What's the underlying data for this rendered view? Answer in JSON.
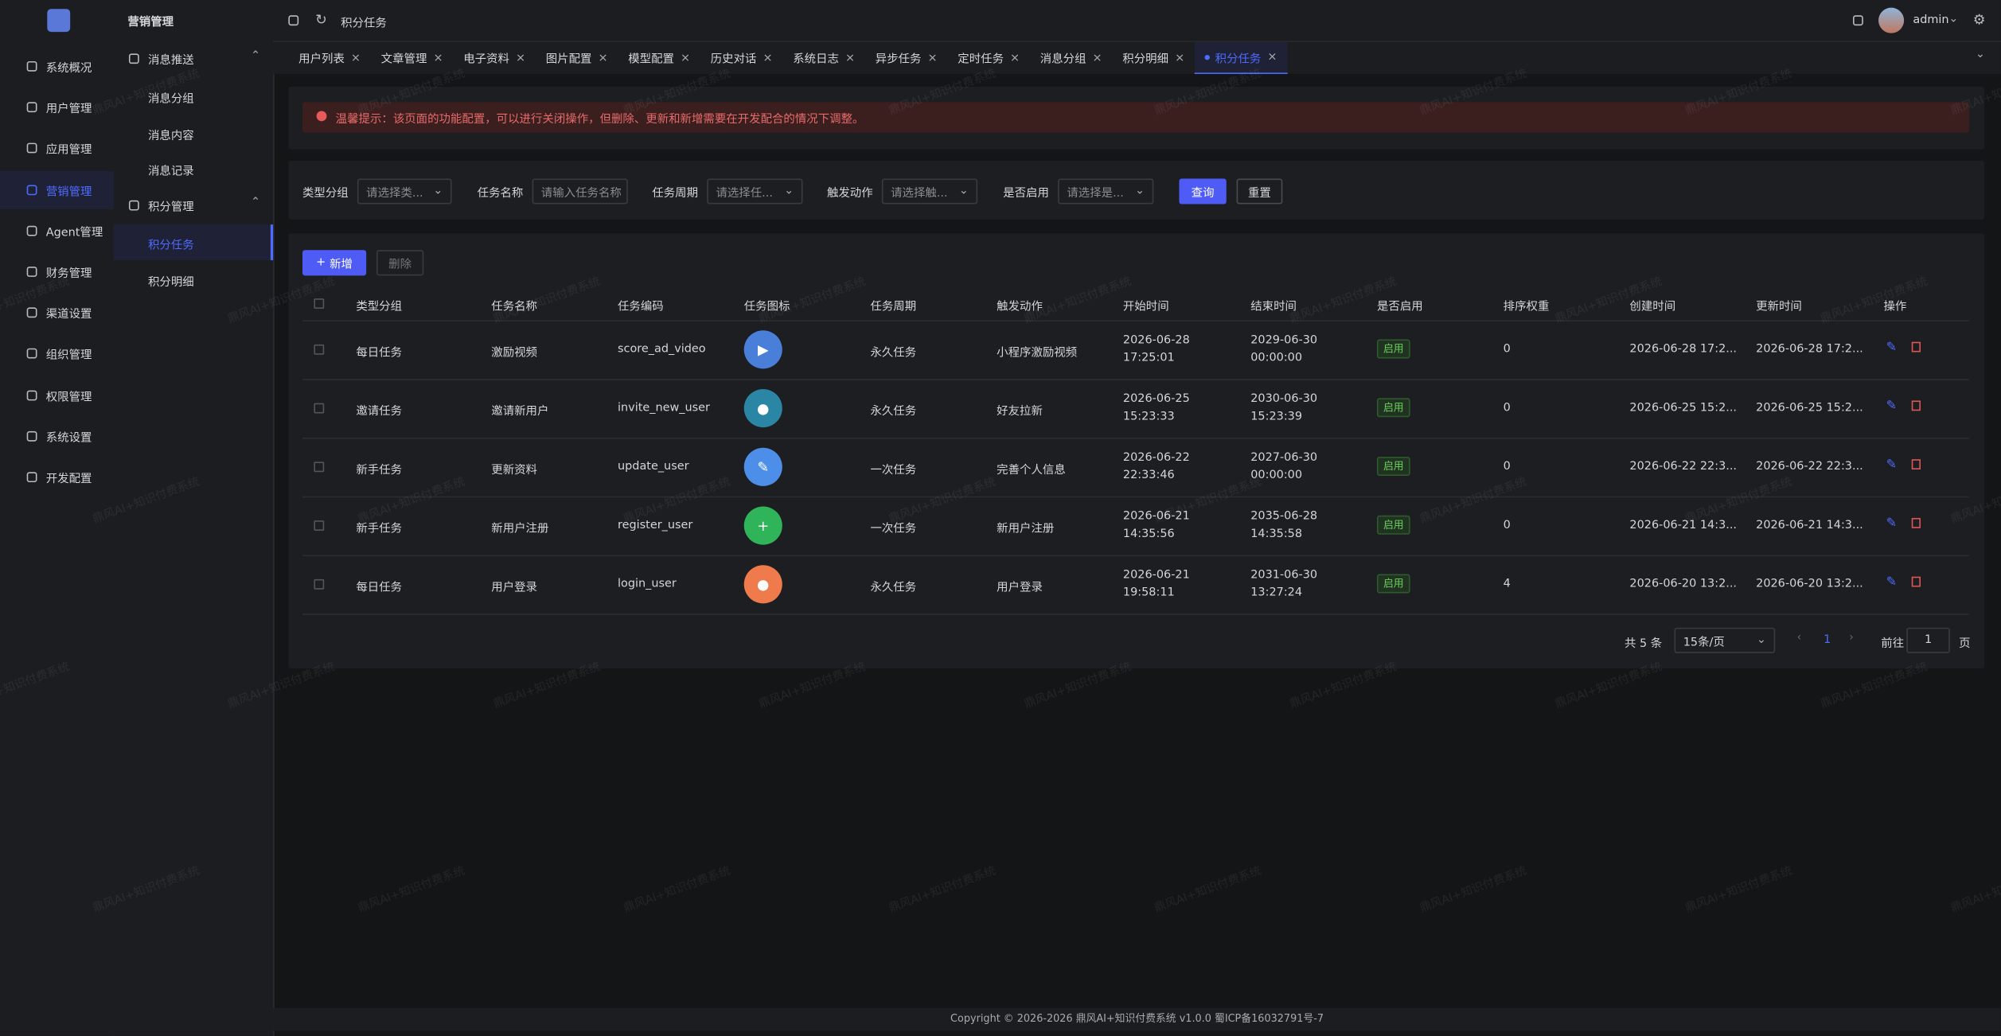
{
  "sidebar": {
    "menu": [
      "系统概况",
      "用户管理",
      "应用管理",
      "营销管理",
      "Agent管理",
      "财务管理",
      "渠道设置",
      "组织管理",
      "权限管理",
      "系统设置",
      "开发配置"
    ],
    "active": 3
  },
  "submenu": {
    "title": "营销管理",
    "groups": [
      {
        "label": "消息推送",
        "items": [
          "消息分组",
          "消息内容",
          "消息记录"
        ]
      },
      {
        "label": "积分管理",
        "items": [
          "积分任务",
          "积分明细"
        ]
      }
    ],
    "active_group": 1,
    "active_item": 0
  },
  "header": {
    "breadcrumb": "积分任务",
    "user": "admin"
  },
  "tabs": [
    "用户列表",
    "文章管理",
    "电子资料",
    "图片配置",
    "模型配置",
    "历史对话",
    "系统日志",
    "异步任务",
    "定时任务",
    "消息分组",
    "积分明细",
    "积分任务"
  ],
  "active_tab": 11,
  "alert": "温馨提示：该页面的功能配置，可以进行关闭操作，但删除、更新和新增需要在开发配合的情况下调整。",
  "filters": [
    {
      "label": "类型分组",
      "placeholder": "请选择类..."
    },
    {
      "label": "任务名称",
      "placeholder": "请输入任务名称"
    },
    {
      "label": "任务周期",
      "placeholder": "请选择任..."
    },
    {
      "label": "触发动作",
      "placeholder": "请选择触..."
    },
    {
      "label": "是否启用",
      "placeholder": "请选择是..."
    }
  ],
  "buttons": {
    "search": "查询",
    "reset": "重置",
    "add": "新增",
    "delete": "删除"
  },
  "table": {
    "columns": [
      "类型分组",
      "任务名称",
      "任务编码",
      "任务图标",
      "任务周期",
      "触发动作",
      "开始时间",
      "结束时间",
      "是否启用",
      "排序权重",
      "创建时间",
      "更新时间",
      "操作"
    ],
    "rows": [
      {
        "type": "每日任务",
        "name": "激励视频",
        "code": "score_ad_video",
        "icon_color": "#4a7fd9",
        "cycle": "永久任务",
        "action": "小程序激励视频",
        "start": [
          "2026-06-28",
          "17:25:01"
        ],
        "end": [
          "2029-06-30",
          "00:00:00"
        ],
        "status": "启用",
        "sort": 0,
        "created": "2026-06-28 17:2...",
        "updated": "2026-06-28 17:2..."
      },
      {
        "type": "邀请任务",
        "name": "邀请新用户",
        "code": "invite_new_user",
        "icon_color": "#2b86a6",
        "cycle": "永久任务",
        "action": "好友拉新",
        "start": [
          "2026-06-25",
          "15:23:33"
        ],
        "end": [
          "2030-06-30",
          "15:23:39"
        ],
        "status": "启用",
        "sort": 0,
        "created": "2026-06-25 15:2...",
        "updated": "2026-06-25 15:2..."
      },
      {
        "type": "新手任务",
        "name": "更新资料",
        "code": "update_user",
        "icon_color": "#4d8fe8",
        "cycle": "一次任务",
        "action": "完善个人信息",
        "start": [
          "2026-06-22",
          "22:33:46"
        ],
        "end": [
          "2027-06-30",
          "00:00:00"
        ],
        "status": "启用",
        "sort": 0,
        "created": "2026-06-22 22:3...",
        "updated": "2026-06-22 22:3..."
      },
      {
        "type": "新手任务",
        "name": "新用户注册",
        "code": "register_user",
        "icon_color": "#2fb45a",
        "cycle": "一次任务",
        "action": "新用户注册",
        "start": [
          "2026-06-21",
          "14:35:56"
        ],
        "end": [
          "2035-06-28",
          "14:35:58"
        ],
        "status": "启用",
        "sort": 0,
        "created": "2026-06-21 14:3...",
        "updated": "2026-06-21 14:3..."
      },
      {
        "type": "每日任务",
        "name": "用户登录",
        "code": "login_user",
        "icon_color": "#ef7a4c",
        "cycle": "永久任务",
        "action": "用户登录",
        "start": [
          "2026-06-21",
          "19:58:11"
        ],
        "end": [
          "2031-06-30",
          "13:27:24"
        ],
        "status": "启用",
        "sort": 4,
        "created": "2026-06-20 13:2...",
        "updated": "2026-06-20 13:2..."
      }
    ]
  },
  "pagination": {
    "total": "共 5 条",
    "page_size": "15条/页",
    "current": 1,
    "goto": "前往",
    "goto_value": 1,
    "page_unit": "页"
  },
  "footer": "Copyright © 2026-2026 鼎风AI+知识付费系统 v1.0.0  蜀ICP备16032791号-7",
  "watermark": "鼎风AI+知识付费系统"
}
